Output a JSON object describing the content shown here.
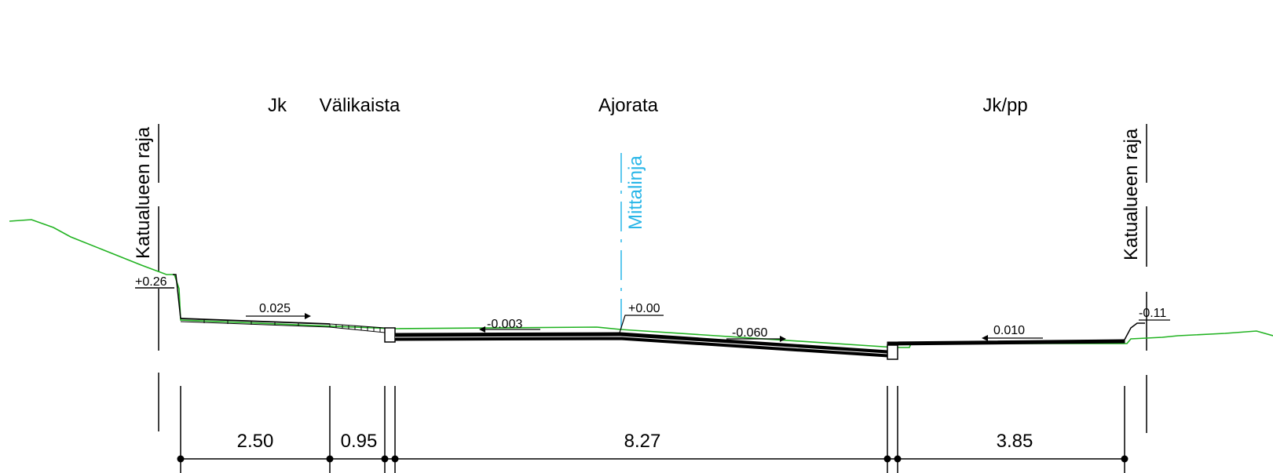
{
  "sections": {
    "jk": "Jk",
    "valikaista": "Välikaista",
    "ajorata": "Ajorata",
    "jkpp": "Jk/pp"
  },
  "boundary_label": "Katualueen raja",
  "centerline_label": "Mittalinja",
  "levels": {
    "left": "+0.26",
    "center": "+0.00",
    "right": "-0.11"
  },
  "slopes": {
    "jk": "0.025",
    "ajorata_left": "-0.003",
    "ajorata_right": "-0.060",
    "jkpp": "0.010"
  },
  "dimensions": {
    "jk": "2.50",
    "valikaista": "0.95",
    "ajorata": "8.27",
    "jkpp": "3.85"
  },
  "colors": {
    "terrain": "#22b322",
    "centerline": "#29b6e8",
    "structure": "#000000"
  }
}
